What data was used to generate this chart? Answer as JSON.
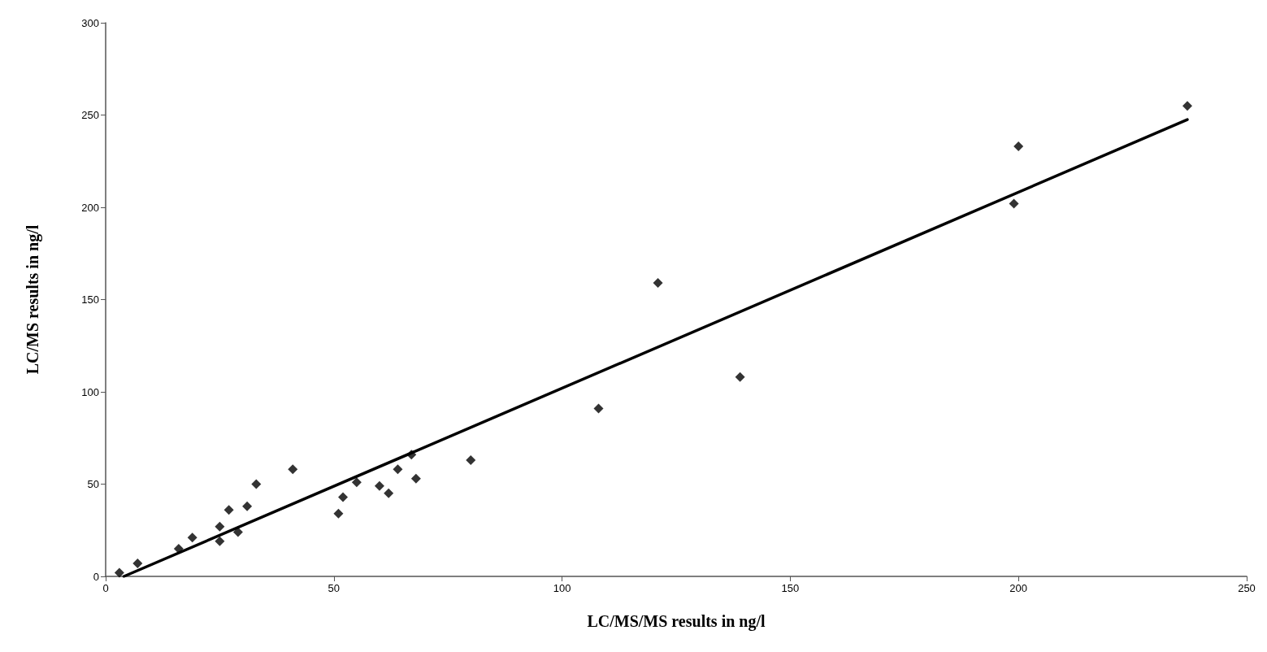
{
  "chart_data": {
    "type": "scatter",
    "xlabel": "LC/MS/MS results in ng/l",
    "ylabel": "LC/MS results in ng/l",
    "xlim": [
      0,
      250
    ],
    "xticks": [
      0,
      50,
      100,
      150,
      200,
      250
    ],
    "ylim": [
      0,
      300
    ],
    "yticks": [
      0,
      50,
      100,
      150,
      200,
      250,
      300
    ],
    "grid": false,
    "marker": "diamond",
    "series": [
      {
        "color": "#000000",
        "x": [
          3,
          7,
          16,
          19,
          25,
          25,
          27,
          29,
          31,
          33,
          41,
          51,
          52,
          55,
          60,
          62,
          64,
          67,
          68,
          80,
          108,
          121,
          139,
          199,
          200,
          237
        ],
        "values": [
          2,
          7,
          15,
          21,
          27,
          19,
          36,
          24,
          38,
          50,
          58,
          34,
          43,
          51,
          49,
          45,
          58,
          66,
          53,
          63,
          91,
          159,
          108,
          202,
          233,
          255
        ]
      },
      {
        "type": "line",
        "color": "#000000",
        "marker": "none",
        "line_style": "solid",
        "x": [
          4,
          237
        ],
        "values": [
          0,
          247.5
        ]
      }
    ]
  }
}
